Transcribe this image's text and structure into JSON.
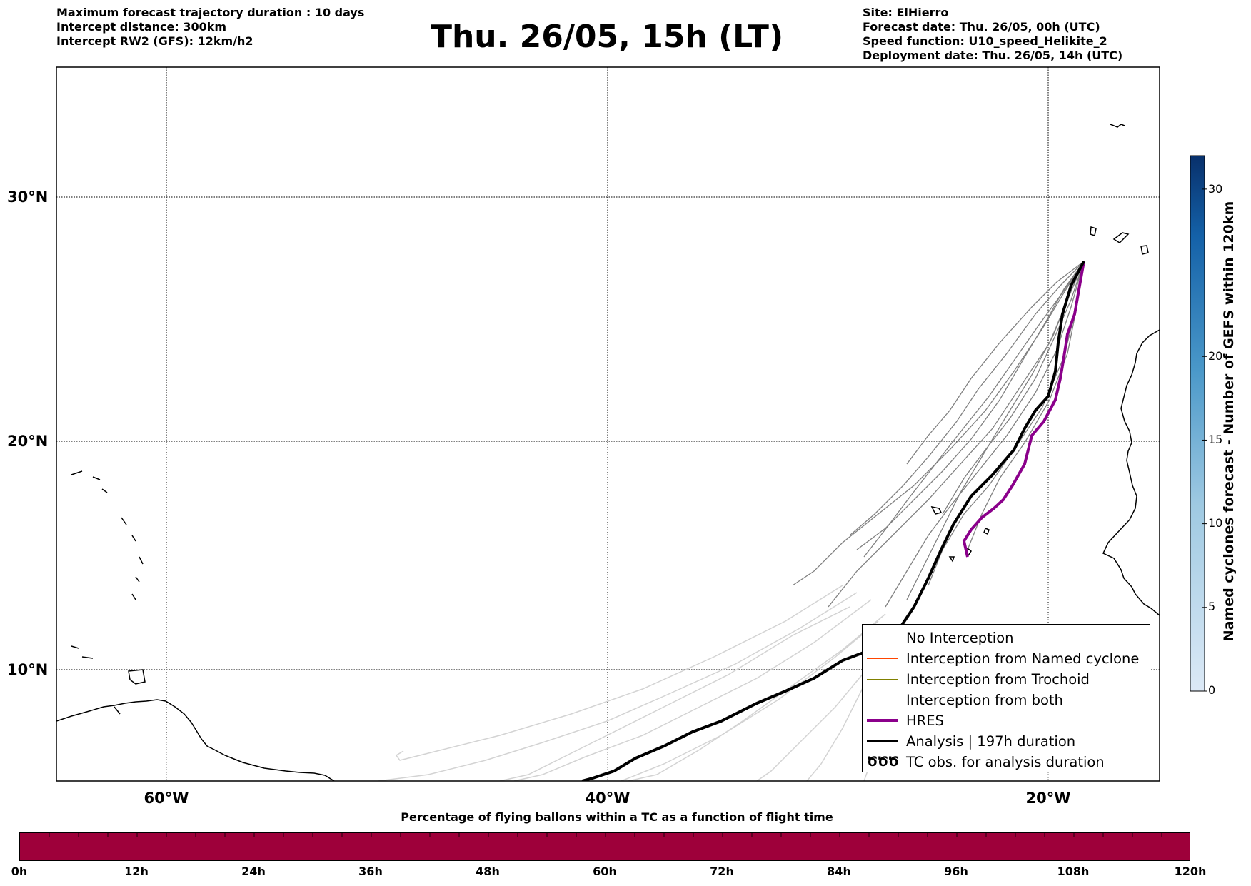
{
  "header_left": {
    "line1": "Maximum forecast trajectory duration : 10 days",
    "line2": "Intercept distance: 300km",
    "line3": "Intercept RW2 (GFS):  12km/h2"
  },
  "title": "Thu. 26/05, 15h (LT)",
  "header_right": {
    "site": "Site: ElHierro",
    "forecast_date": "Forecast date: Thu. 26/05, 00h (UTC)",
    "speed_function": "Speed function: U10_speed_Helikite_2",
    "deployment_date": "Deployment date: Thu. 26/05, 14h (UTC)"
  },
  "map": {
    "lat_labels": [
      "30°N",
      "20°N",
      "10°N"
    ],
    "lon_labels": [
      "60°W",
      "40°W",
      "20°W"
    ],
    "colors": {
      "no_interception": "#808080",
      "named_cyclone": "#ff4500",
      "trochoid": "#808000",
      "both": "#008000",
      "hres": "#8b008b",
      "analysis": "#000000",
      "faded": "#d3d3d3"
    }
  },
  "legend": {
    "items": [
      {
        "label": "No Interception",
        "color": "#808080",
        "width": 1.5
      },
      {
        "label": "Interception from Named cyclone",
        "color": "#ff4500",
        "width": 1.5
      },
      {
        "label": "Interception from Trochoid",
        "color": "#808000",
        "width": 1.5
      },
      {
        "label": "Interception from both",
        "color": "#008000",
        "width": 1.5
      },
      {
        "label": "HRES",
        "color": "#8b008b",
        "width": 4
      },
      {
        "label": "Analysis | 197h duration",
        "color": "#000000",
        "width": 4
      },
      {
        "label": "TC obs. for analysis duration",
        "icon": "cyclone-symbols",
        "symbol": "ԾԾԾ"
      }
    ]
  },
  "colorbar": {
    "label": "Named cyclones forecast - Number of GEFS within 120km",
    "ticks": [
      "0",
      "5",
      "10",
      "15",
      "20",
      "30"
    ],
    "max": 32
  },
  "pct_bar": {
    "title": "Percentage of flying ballons within a TC as a function of flight time",
    "ticks": [
      "0h",
      "12h",
      "24h",
      "36h",
      "48h",
      "60h",
      "72h",
      "84h",
      "96h",
      "108h",
      "120h"
    ],
    "color": "#9e003a"
  }
}
